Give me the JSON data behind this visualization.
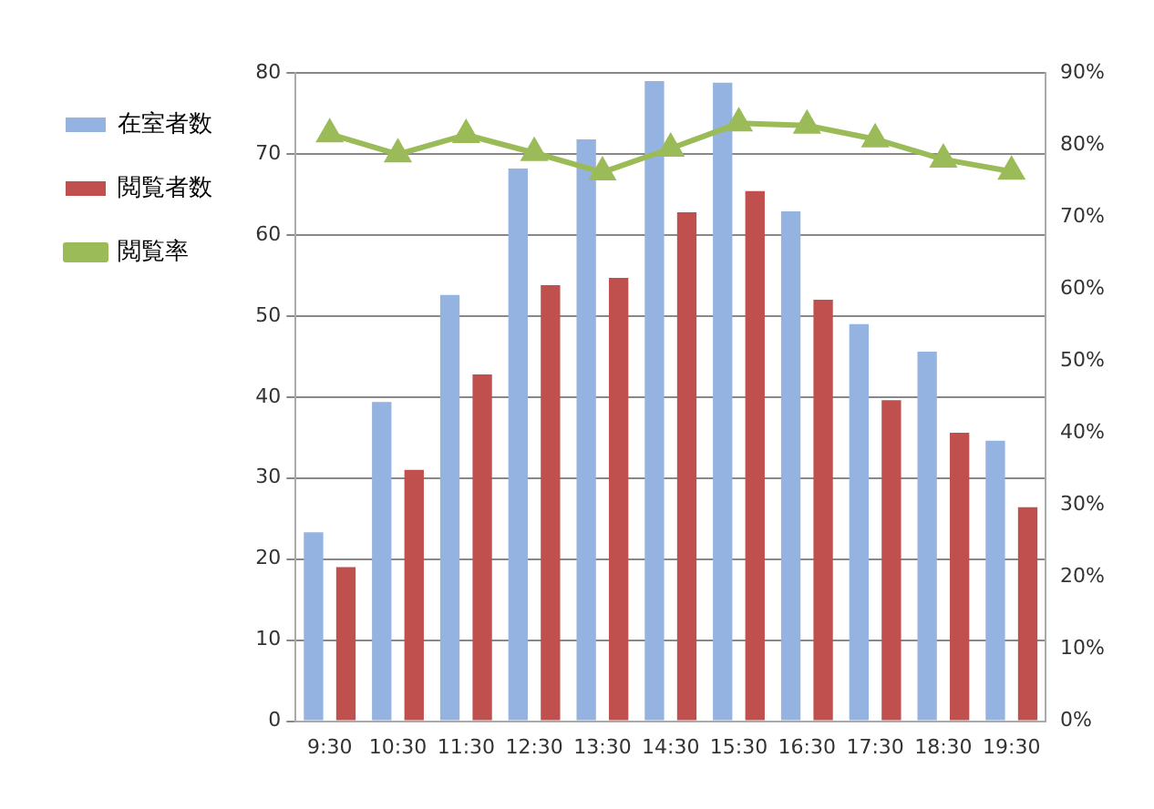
{
  "chart_data": {
    "type": "bar",
    "categories": [
      "9:30",
      "10:30",
      "11:30",
      "12:30",
      "13:30",
      "14:30",
      "15:30",
      "16:30",
      "17:30",
      "18:30",
      "19:30"
    ],
    "series": [
      {
        "name": "在室者数",
        "color": "#95b3e0",
        "values": [
          23.3,
          39.4,
          52.6,
          68.2,
          71.8,
          79,
          78.8,
          62.9,
          49,
          45.6,
          34.6
        ]
      },
      {
        "name": "閲覧者数",
        "color": "#c0504d",
        "values": [
          19,
          31,
          42.8,
          53.8,
          54.7,
          62.8,
          65.4,
          52,
          39.6,
          35.6,
          26.4
        ]
      },
      {
        "name": "閲覧率",
        "type": "line",
        "axis": "y2",
        "color": "#9bbb59",
        "marker": "triangle",
        "values": [
          81.5,
          78.7,
          81.4,
          78.9,
          76.2,
          79.5,
          83,
          82.7,
          80.8,
          78,
          76.3
        ]
      }
    ],
    "ylim": [
      0,
      80
    ],
    "yticks": [
      0,
      10,
      20,
      30,
      40,
      50,
      60,
      70,
      80
    ],
    "y2lim": [
      0,
      90
    ],
    "y2ticks": [
      {
        "value": 0,
        "label": "0%"
      },
      {
        "value": 10,
        "label": "10%"
      },
      {
        "value": 20,
        "label": "20%"
      },
      {
        "value": 30,
        "label": "30%"
      },
      {
        "value": 40,
        "label": "40%"
      },
      {
        "value": 50,
        "label": "50%"
      },
      {
        "value": 60,
        "label": "60%"
      },
      {
        "value": 70,
        "label": "70%"
      },
      {
        "value": 80,
        "label": "80%"
      },
      {
        "value": 90,
        "label": "90%"
      }
    ],
    "grid": "y",
    "legend": "left"
  }
}
